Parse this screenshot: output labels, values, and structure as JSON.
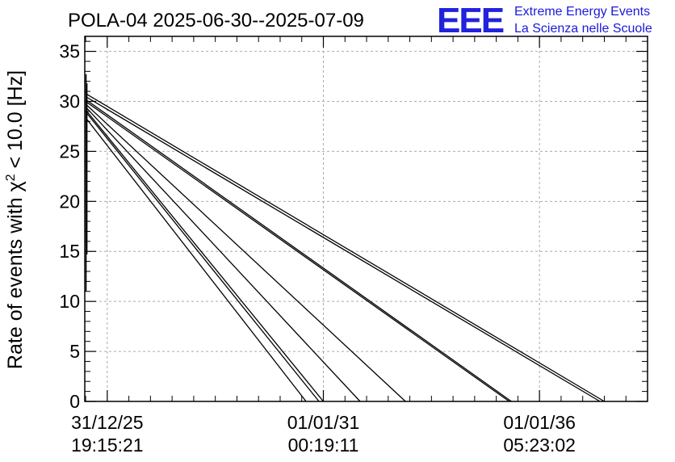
{
  "header": {
    "title": "POLA-04 2025-06-30--2025-07-09",
    "logo": "EEE",
    "org_line1": "Extreme Energy Events",
    "org_line2": "La Scienza nelle Scuole"
  },
  "chart_data": {
    "type": "line",
    "title": "POLA-04 2025-06-30--2025-07-09",
    "ylabel_prefix": "Rate of events with ",
    "ylabel_symbol": "χ",
    "ylabel_sup": "2",
    "ylabel_suffix": " < 10.0 [Hz]",
    "xlim": [
      -0.52,
      12.5
    ],
    "ylim": [
      0,
      36.5
    ],
    "grid": true,
    "legend": "none",
    "color": "#000000",
    "x_ticks": [
      {
        "x": 0,
        "date": "31/12/25",
        "time": "19:15:21"
      },
      {
        "x": 5,
        "date": "01/01/31",
        "time": "00:19:11"
      },
      {
        "x": 10,
        "date": "01/01/36",
        "time": "05:23:02"
      }
    ],
    "y_ticks": [
      0,
      5,
      10,
      15,
      20,
      25,
      30,
      35
    ],
    "spike": {
      "x": -0.49,
      "y_min": 11,
      "y_max": 32.7
    },
    "spike2": {
      "x": -0.47,
      "y_min": 14.7,
      "y_max": 31.8
    },
    "series": [
      {
        "values": [
          [
            -0.47,
            28.2
          ],
          [
            4.6,
            0
          ]
        ]
      },
      {
        "values": [
          [
            -0.47,
            28.8
          ],
          [
            4.9,
            0
          ]
        ]
      },
      {
        "values": [
          [
            -0.47,
            29.0
          ],
          [
            5.0,
            0
          ]
        ]
      },
      {
        "values": [
          [
            -0.47,
            29.3
          ],
          [
            5.85,
            0
          ]
        ]
      },
      {
        "values": [
          [
            -0.47,
            29.6
          ],
          [
            6.9,
            0
          ]
        ]
      },
      {
        "values": [
          [
            -0.47,
            29.9
          ],
          [
            9.3,
            0
          ]
        ]
      },
      {
        "values": [
          [
            -0.47,
            30.1
          ],
          [
            9.35,
            0
          ]
        ]
      },
      {
        "values": [
          [
            -0.47,
            30.4
          ],
          [
            11.4,
            0
          ]
        ]
      },
      {
        "values": [
          [
            -0.47,
            30.7
          ],
          [
            11.5,
            0
          ]
        ]
      }
    ]
  }
}
